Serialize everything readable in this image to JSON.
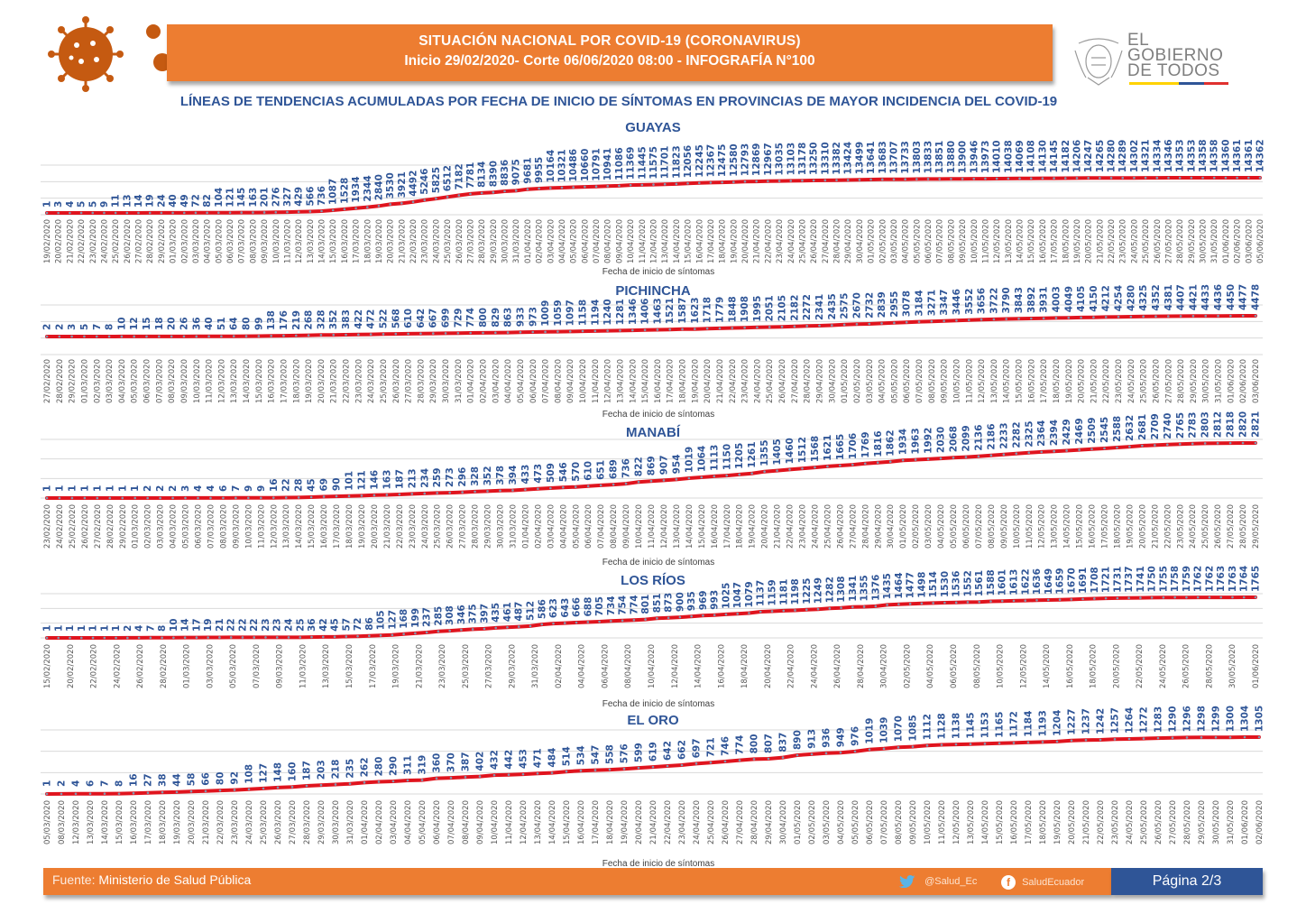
{
  "header": {
    "line1": "SITUACIÓN NACIONAL POR  COVID-19 (CORONAVIRUS)",
    "line2": "Inicio 29/02/2020- Corte 06/06/2020 08:00  - INFOGRAFÍA N°100"
  },
  "logo": {
    "line1": "EL",
    "line2": "GOBIERNO",
    "line3": "DE TODOS",
    "colors": [
      "#ffd200",
      "#2f5597",
      "#e0312f"
    ]
  },
  "subtitle": "LÍNEAS DE TENDENCIAS ACUMULADAS POR FECHA DE INICIO DE SÍNTOMAS EN PROVINCIAS DE MAYOR INCIDENCIA DEL COVID-19",
  "footer": {
    "source_label": "Fuente:",
    "source_value": "Ministerio de Salud Pública",
    "twitter": "@Salud_Ec",
    "facebook": "SaludEcuador",
    "page": "Página 2/3"
  },
  "colors": {
    "line": "#e0141e",
    "marker": "#8497b0",
    "label": "#2f5597",
    "accent": "#ed7d31"
  },
  "chart_data": [
    {
      "type": "line",
      "title": "GUAYAS",
      "xlabel": "Fecha de inicio de síntomas",
      "ylabel": "",
      "grid": true,
      "x": [
        "19/02/2020",
        "20/02/2020",
        "21/02/2020",
        "22/02/2020",
        "23/02/2020",
        "24/02/2020",
        "25/02/2020",
        "26/02/2020",
        "27/02/2020",
        "28/02/2020",
        "29/02/2020",
        "01/03/2020",
        "02/03/2020",
        "03/03/2020",
        "04/03/2020",
        "05/03/2020",
        "06/03/2020",
        "07/03/2020",
        "08/03/2020",
        "09/03/2020",
        "10/03/2020",
        "11/03/2020",
        "12/03/2020",
        "13/03/2020",
        "14/03/2020",
        "15/03/2020",
        "16/03/2020",
        "17/03/2020",
        "18/03/2020",
        "19/03/2020",
        "20/03/2020",
        "21/03/2020",
        "22/03/2020",
        "23/03/2020",
        "24/03/2020",
        "25/03/2020",
        "26/03/2020",
        "27/03/2020",
        "28/03/2020",
        "29/03/2020",
        "30/03/2020",
        "31/03/2020",
        "01/04/2020",
        "02/04/2020",
        "03/04/2020",
        "04/04/2020",
        "05/04/2020",
        "06/04/2020",
        "07/04/2020",
        "08/04/2020",
        "09/04/2020",
        "10/04/2020",
        "11/04/2020",
        "12/04/2020",
        "13/04/2020",
        "14/04/2020",
        "15/04/2020",
        "16/04/2020",
        "17/04/2020",
        "18/04/2020",
        "19/04/2020",
        "20/04/2020",
        "21/04/2020",
        "22/04/2020",
        "23/04/2020",
        "24/04/2020",
        "25/04/2020",
        "26/04/2020",
        "27/04/2020",
        "28/04/2020",
        "29/04/2020",
        "30/04/2020",
        "01/05/2020",
        "02/05/2020",
        "03/05/2020",
        "04/05/2020",
        "05/05/2020",
        "06/05/2020",
        "07/05/2020",
        "08/05/2020",
        "09/05/2020",
        "10/05/2020",
        "11/05/2020",
        "12/05/2020",
        "13/05/2020",
        "14/05/2020",
        "15/05/2020",
        "16/05/2020",
        "17/05/2020",
        "18/05/2020",
        "19/05/2020",
        "20/05/2020",
        "21/05/2020",
        "22/05/2020",
        "23/05/2020",
        "24/05/2020",
        "25/05/2020",
        "26/05/2020",
        "27/05/2020",
        "28/05/2020",
        "29/05/2020",
        "30/05/2020",
        "31/05/2020",
        "01/06/2020",
        "02/06/2020",
        "03/06/2020",
        "05/06/2020"
      ],
      "values": [
        1,
        3,
        4,
        5,
        5,
        9,
        11,
        13,
        14,
        19,
        24,
        40,
        49,
        72,
        82,
        104,
        121,
        145,
        163,
        201,
        276,
        327,
        429,
        566,
        736,
        1087,
        1528,
        1934,
        2344,
        2840,
        3530,
        3921,
        4492,
        5246,
        5825,
        6512,
        7182,
        7781,
        8134,
        8390,
        8836,
        9075,
        9681,
        9955,
        10164,
        10321,
        10486,
        10660,
        10791,
        10941,
        11086,
        11369,
        11445,
        11575,
        11701,
        11823,
        12056,
        12245,
        12367,
        12475,
        12580,
        12793,
        12869,
        12967,
        13035,
        13103,
        13178,
        13250,
        13310,
        13382,
        13424,
        13499,
        13641,
        13683,
        13707,
        13733,
        13803,
        13833,
        13851,
        13880,
        13900,
        13946,
        13973,
        14010,
        14038,
        14069,
        14108,
        14130,
        14145,
        14182,
        14206,
        14247,
        14265,
        14280,
        14289,
        14302,
        14321,
        14334,
        14346,
        14353,
        14353,
        14358,
        14358,
        14360,
        14361,
        14361,
        14362
      ]
    },
    {
      "type": "line",
      "title": "PICHINCHA",
      "xlabel": "Fecha de inicio de síntomas",
      "ylabel": "",
      "grid": true,
      "x": [
        "27/02/2020",
        "28/02/2020",
        "29/02/2020",
        "01/03/2020",
        "02/03/2020",
        "03/03/2020",
        "04/03/2020",
        "05/03/2020",
        "06/03/2020",
        "07/03/2020",
        "08/03/2020",
        "09/03/2020",
        "10/03/2020",
        "11/03/2020",
        "12/03/2020",
        "13/03/2020",
        "14/03/2020",
        "15/03/2020",
        "16/03/2020",
        "17/03/2020",
        "18/03/2020",
        "19/03/2020",
        "20/03/2020",
        "21/03/2020",
        "22/03/2020",
        "23/03/2020",
        "24/03/2020",
        "25/03/2020",
        "26/03/2020",
        "27/03/2020",
        "28/03/2020",
        "29/03/2020",
        "30/03/2020",
        "31/03/2020",
        "01/04/2020",
        "02/04/2020",
        "03/04/2020",
        "04/04/2020",
        "05/04/2020",
        "06/04/2020",
        "07/04/2020",
        "08/04/2020",
        "09/04/2020",
        "10/04/2020",
        "11/04/2020",
        "12/04/2020",
        "13/04/2020",
        "14/04/2020",
        "15/04/2020",
        "16/04/2020",
        "17/04/2020",
        "18/04/2020",
        "19/04/2020",
        "20/04/2020",
        "21/04/2020",
        "22/04/2020",
        "23/04/2020",
        "24/04/2020",
        "25/04/2020",
        "26/04/2020",
        "27/04/2020",
        "28/04/2020",
        "29/04/2020",
        "30/04/2020",
        "01/05/2020",
        "02/05/2020",
        "03/05/2020",
        "04/05/2020",
        "05/05/2020",
        "06/05/2020",
        "07/05/2020",
        "08/05/2020",
        "09/05/2020",
        "10/05/2020",
        "11/05/2020",
        "12/05/2020",
        "13/05/2020",
        "14/05/2020",
        "15/05/2020",
        "16/05/2020",
        "17/05/2020",
        "18/05/2020",
        "19/05/2020",
        "20/05/2020",
        "21/05/2020",
        "22/05/2020",
        "23/05/2020",
        "24/05/2020",
        "25/05/2020",
        "26/05/2020",
        "27/05/2020",
        "28/05/2020",
        "29/05/2020",
        "30/05/2020",
        "31/05/2020",
        "01/06/2020",
        "02/06/2020",
        "03/06/2020"
      ],
      "values": [
        2,
        2,
        3,
        5,
        7,
        8,
        10,
        12,
        15,
        18,
        20,
        26,
        36,
        40,
        51,
        64,
        80,
        99,
        138,
        176,
        219,
        268,
        328,
        352,
        383,
        422,
        472,
        522,
        568,
        610,
        642,
        667,
        699,
        729,
        774,
        800,
        829,
        863,
        933,
        973,
        1009,
        1059,
        1097,
        1158,
        1194,
        1240,
        1281,
        1346,
        1406,
        1463,
        1521,
        1587,
        1623,
        1718,
        1779,
        1848,
        1908,
        1995,
        2051,
        2105,
        2182,
        2272,
        2341,
        2435,
        2575,
        2670,
        2732,
        2839,
        2955,
        3078,
        3184,
        3271,
        3347,
        3446,
        3552,
        3656,
        3722,
        3790,
        3843,
        3892,
        3931,
        4003,
        4049,
        4105,
        4150,
        4212,
        4254,
        4280,
        4325,
        4352,
        4381,
        4407,
        4421,
        4433,
        4436,
        4450,
        4477,
        4478
      ]
    },
    {
      "type": "line",
      "title": "MANABÍ",
      "xlabel": "Fecha de inicio de síntomas",
      "ylabel": "",
      "grid": true,
      "x": [
        "23/02/2020",
        "24/02/2020",
        "25/02/2020",
        "26/02/2020",
        "27/02/2020",
        "28/02/2020",
        "29/02/2020",
        "01/03/2020",
        "02/03/2020",
        "03/03/2020",
        "04/03/2020",
        "05/03/2020",
        "06/03/2020",
        "07/03/2020",
        "08/03/2020",
        "09/03/2020",
        "10/03/2020",
        "11/03/2020",
        "12/03/2020",
        "13/03/2020",
        "14/03/2020",
        "15/03/2020",
        "16/03/2020",
        "17/03/2020",
        "18/03/2020",
        "19/03/2020",
        "20/03/2020",
        "21/03/2020",
        "22/03/2020",
        "23/03/2020",
        "24/03/2020",
        "25/03/2020",
        "26/03/2020",
        "27/03/2020",
        "28/03/2020",
        "29/03/2020",
        "30/03/2020",
        "31/03/2020",
        "01/04/2020",
        "02/04/2020",
        "03/04/2020",
        "04/04/2020",
        "05/04/2020",
        "06/04/2020",
        "07/04/2020",
        "08/04/2020",
        "09/04/2020",
        "10/04/2020",
        "11/04/2020",
        "12/04/2020",
        "13/04/2020",
        "14/04/2020",
        "15/04/2020",
        "16/04/2020",
        "17/04/2020",
        "18/04/2020",
        "19/04/2020",
        "20/04/2020",
        "21/04/2020",
        "22/04/2020",
        "23/04/2020",
        "24/04/2020",
        "25/04/2020",
        "26/04/2020",
        "27/04/2020",
        "28/04/2020",
        "29/04/2020",
        "30/04/2020",
        "01/05/2020",
        "02/05/2020",
        "03/05/2020",
        "04/05/2020",
        "05/05/2020",
        "06/05/2020",
        "07/05/2020",
        "08/05/2020",
        "09/05/2020",
        "10/05/2020",
        "11/05/2020",
        "12/05/2020",
        "13/05/2020",
        "14/05/2020",
        "15/05/2020",
        "16/05/2020",
        "17/05/2020",
        "18/05/2020",
        "19/05/2020",
        "20/05/2020",
        "21/05/2020",
        "22/05/2020",
        "23/05/2020",
        "24/05/2020",
        "25/05/2020",
        "26/05/2020",
        "27/05/2020",
        "28/05/2020",
        "29/05/2020"
      ],
      "values": [
        1,
        1,
        1,
        1,
        1,
        1,
        1,
        1,
        2,
        2,
        2,
        3,
        4,
        4,
        6,
        7,
        9,
        9,
        16,
        22,
        28,
        45,
        69,
        90,
        101,
        121,
        146,
        163,
        187,
        213,
        234,
        259,
        273,
        296,
        328,
        352,
        378,
        394,
        433,
        473,
        509,
        546,
        570,
        610,
        651,
        689,
        736,
        822,
        869,
        907,
        954,
        1019,
        1064,
        1113,
        1150,
        1205,
        1261,
        1355,
        1405,
        1460,
        1512,
        1568,
        1621,
        1665,
        1706,
        1769,
        1816,
        1862,
        1934,
        1963,
        1992,
        2030,
        2068,
        2099,
        2136,
        2186,
        2233,
        2282,
        2325,
        2364,
        2394,
        2429,
        2469,
        2509,
        2545,
        2588,
        2632,
        2681,
        2709,
        2740,
        2765,
        2783,
        2803,
        2812,
        2818,
        2820,
        2821
      ]
    },
    {
      "type": "line",
      "title": "LOS RÍOS",
      "xlabel": "Fecha de inicio de síntomas",
      "ylabel": "",
      "grid": true,
      "tick_labels": [
        "15/02/2020",
        "20/02/2020",
        "22/02/2020",
        "24/02/2020",
        "26/02/2020",
        "28/02/2020",
        "01/03/2020",
        "03/03/2020",
        "05/03/2020",
        "07/03/2020",
        "09/03/2020",
        "11/03/2020",
        "13/03/2020",
        "15/03/2020",
        "17/03/2020",
        "19/03/2020",
        "21/03/2020",
        "23/03/2020",
        "25/03/2020",
        "27/03/2020",
        "29/03/2020",
        "31/03/2020",
        "02/04/2020",
        "04/04/2020",
        "06/04/2020",
        "08/04/2020",
        "10/04/2020",
        "12/04/2020",
        "14/04/2020",
        "16/04/2020",
        "18/04/2020",
        "20/04/2020",
        "22/04/2020",
        "24/04/2020",
        "26/04/2020",
        "28/04/2020",
        "30/04/2020",
        "02/05/2020",
        "04/05/2020",
        "06/05/2020",
        "08/05/2020",
        "10/05/2020",
        "12/05/2020",
        "14/05/2020",
        "16/05/2020",
        "18/05/2020",
        "20/05/2020",
        "22/05/2020",
        "24/05/2020",
        "26/05/2020",
        "28/05/2020",
        "30/05/2020",
        "01/06/2020"
      ],
      "values": [
        1,
        1,
        1,
        1,
        1,
        1,
        1,
        2,
        4,
        7,
        8,
        10,
        14,
        17,
        19,
        21,
        22,
        22,
        22,
        23,
        23,
        24,
        25,
        36,
        42,
        45,
        57,
        72,
        86,
        105,
        127,
        168,
        199,
        237,
        285,
        308,
        346,
        375,
        397,
        435,
        461,
        487,
        512,
        586,
        623,
        643,
        666,
        688,
        705,
        734,
        754,
        774,
        801,
        851,
        873,
        900,
        935,
        969,
        993,
        1025,
        1047,
        1079,
        1137,
        1159,
        1181,
        1198,
        1225,
        1249,
        1282,
        1308,
        1341,
        1355,
        1376,
        1435,
        1464,
        1477,
        1498,
        1514,
        1530,
        1536,
        1552,
        1561,
        1588,
        1601,
        1613,
        1622,
        1636,
        1649,
        1659,
        1670,
        1691,
        1708,
        1721,
        1731,
        1737,
        1741,
        1750,
        1755,
        1758,
        1759,
        1762,
        1762,
        1763,
        1763,
        1764,
        1765
      ]
    },
    {
      "type": "line",
      "title": "EL ORO",
      "xlabel": "Fecha de inicio de síntomas",
      "ylabel": "",
      "grid": true,
      "x": [
        "05/03/2020",
        "08/03/2020",
        "12/03/2020",
        "13/03/2020",
        "14/03/2020",
        "15/03/2020",
        "16/03/2020",
        "17/03/2020",
        "18/03/2020",
        "19/03/2020",
        "20/03/2020",
        "21/03/2020",
        "22/03/2020",
        "23/03/2020",
        "24/03/2020",
        "25/03/2020",
        "26/03/2020",
        "27/03/2020",
        "28/03/2020",
        "29/03/2020",
        "30/03/2020",
        "31/03/2020",
        "01/04/2020",
        "02/04/2020",
        "03/04/2020",
        "04/04/2020",
        "05/04/2020",
        "06/04/2020",
        "07/04/2020",
        "08/04/2020",
        "09/04/2020",
        "10/04/2020",
        "11/04/2020",
        "12/04/2020",
        "13/04/2020",
        "14/04/2020",
        "15/04/2020",
        "16/04/2020",
        "17/04/2020",
        "18/04/2020",
        "19/04/2020",
        "20/04/2020",
        "21/04/2020",
        "22/04/2020",
        "23/04/2020",
        "24/04/2020",
        "25/04/2020",
        "26/04/2020",
        "27/04/2020",
        "28/04/2020",
        "29/04/2020",
        "30/04/2020",
        "01/05/2020",
        "02/05/2020",
        "03/05/2020",
        "04/05/2020",
        "05/05/2020",
        "06/05/2020",
        "07/05/2020",
        "08/05/2020",
        "09/05/2020",
        "10/05/2020",
        "11/05/2020",
        "12/05/2020",
        "13/05/2020",
        "14/05/2020",
        "15/05/2020",
        "16/05/2020",
        "17/05/2020",
        "18/05/2020",
        "19/05/2020",
        "20/05/2020",
        "21/05/2020",
        "22/05/2020",
        "23/05/2020",
        "24/05/2020",
        "25/05/2020",
        "26/05/2020",
        "27/05/2020",
        "28/05/2020",
        "29/05/2020",
        "30/05/2020",
        "31/05/2020",
        "01/06/2020",
        "02/06/2020"
      ],
      "values": [
        1,
        2,
        4,
        6,
        7,
        8,
        16,
        27,
        38,
        44,
        58,
        66,
        80,
        92,
        108,
        127,
        148,
        160,
        187,
        203,
        218,
        235,
        262,
        280,
        290,
        311,
        319,
        360,
        370,
        387,
        402,
        432,
        442,
        453,
        471,
        484,
        514,
        534,
        547,
        558,
        576,
        599,
        619,
        642,
        662,
        697,
        721,
        746,
        774,
        800,
        807,
        837,
        890,
        913,
        936,
        949,
        976,
        1019,
        1039,
        1070,
        1085,
        1112,
        1128,
        1138,
        1145,
        1153,
        1165,
        1172,
        1184,
        1193,
        1204,
        1227,
        1237,
        1242,
        1257,
        1264,
        1272,
        1283,
        1290,
        1296,
        1298,
        1299,
        1300,
        1304,
        1305
      ]
    }
  ]
}
